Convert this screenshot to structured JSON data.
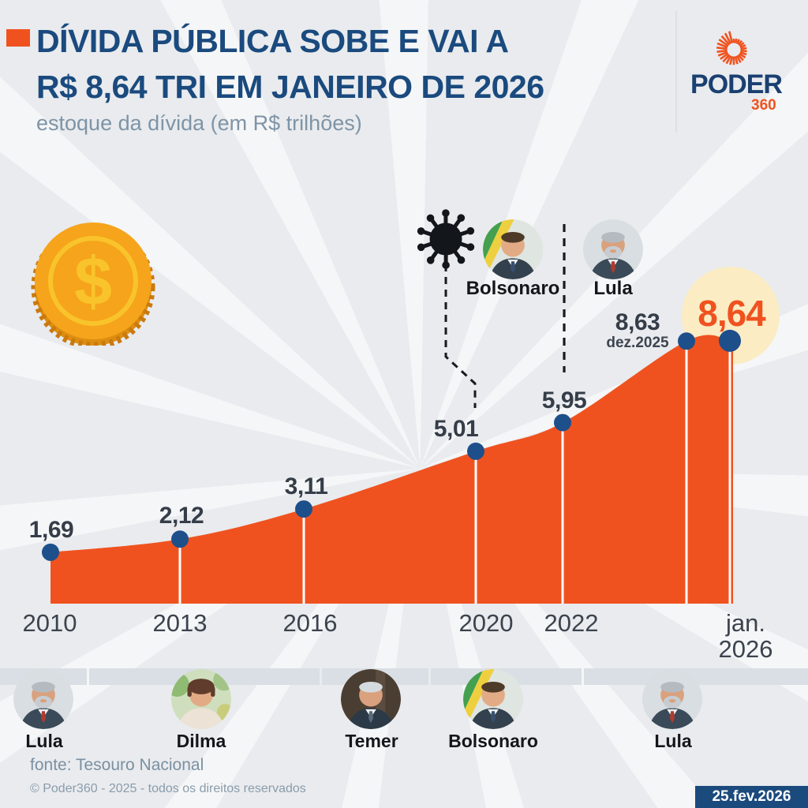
{
  "header": {
    "title_line1": "DÍVIDA PÚBLICA SOBE E VAI A",
    "title_line2": "R$ 8,64 TRI EM JANEIRO DE 2026",
    "subtitle": "estoque da dívida (em R$ trilhões)",
    "logo_word": "PODER",
    "logo_number": "360"
  },
  "decor": {
    "coin_symbol": "$"
  },
  "chart_data": {
    "type": "area",
    "title": "Dívida pública — estoque da dívida",
    "unit": "R$ trilhões",
    "categories": [
      "2010",
      "2013",
      "2016",
      "2020",
      "2022",
      "dez.2025",
      "jan.2026"
    ],
    "values": [
      1.69,
      2.12,
      3.11,
      5.01,
      5.95,
      8.63,
      8.64
    ],
    "point_labels": [
      "1,69",
      "2,12",
      "3,11",
      "5,01",
      "5,95",
      "8,63",
      "8,64"
    ],
    "sublabel": "dez.2025",
    "x_ticks": [
      "2010",
      "2013",
      "2016",
      "2020",
      "2022"
    ],
    "x_tick_last": [
      "jan.",
      "2026"
    ],
    "ylim": [
      0,
      9
    ],
    "grid": false,
    "legend": "none",
    "annotations": {
      "covid_icon": "coronavirus marker pointing to 2020",
      "government_divider_at": "2022",
      "presidents": [
        {
          "name": "Bolsonaro"
        },
        {
          "name": "Lula"
        }
      ],
      "highlighted_value": "8,64"
    }
  },
  "timeline": {
    "presidents": [
      {
        "name": "Lula"
      },
      {
        "name": "Dilma"
      },
      {
        "name": "Temer"
      },
      {
        "name": "Bolsonaro"
      },
      {
        "name": "Lula"
      }
    ]
  },
  "footer": {
    "source": "fonte: Tesouro Nacional",
    "copyright": "© Poder360 - 2025 - todos os direitos reservados",
    "date_badge": "25.fev.2026"
  },
  "colors": {
    "area_orange": "#f0521f",
    "accent_orange": "#f0521f",
    "title_navy": "#1a4a7e",
    "dot_blue": "#1d4f8b",
    "highlight_yellow": "#fbecc3",
    "badge_navy": "#1b4a7d"
  }
}
